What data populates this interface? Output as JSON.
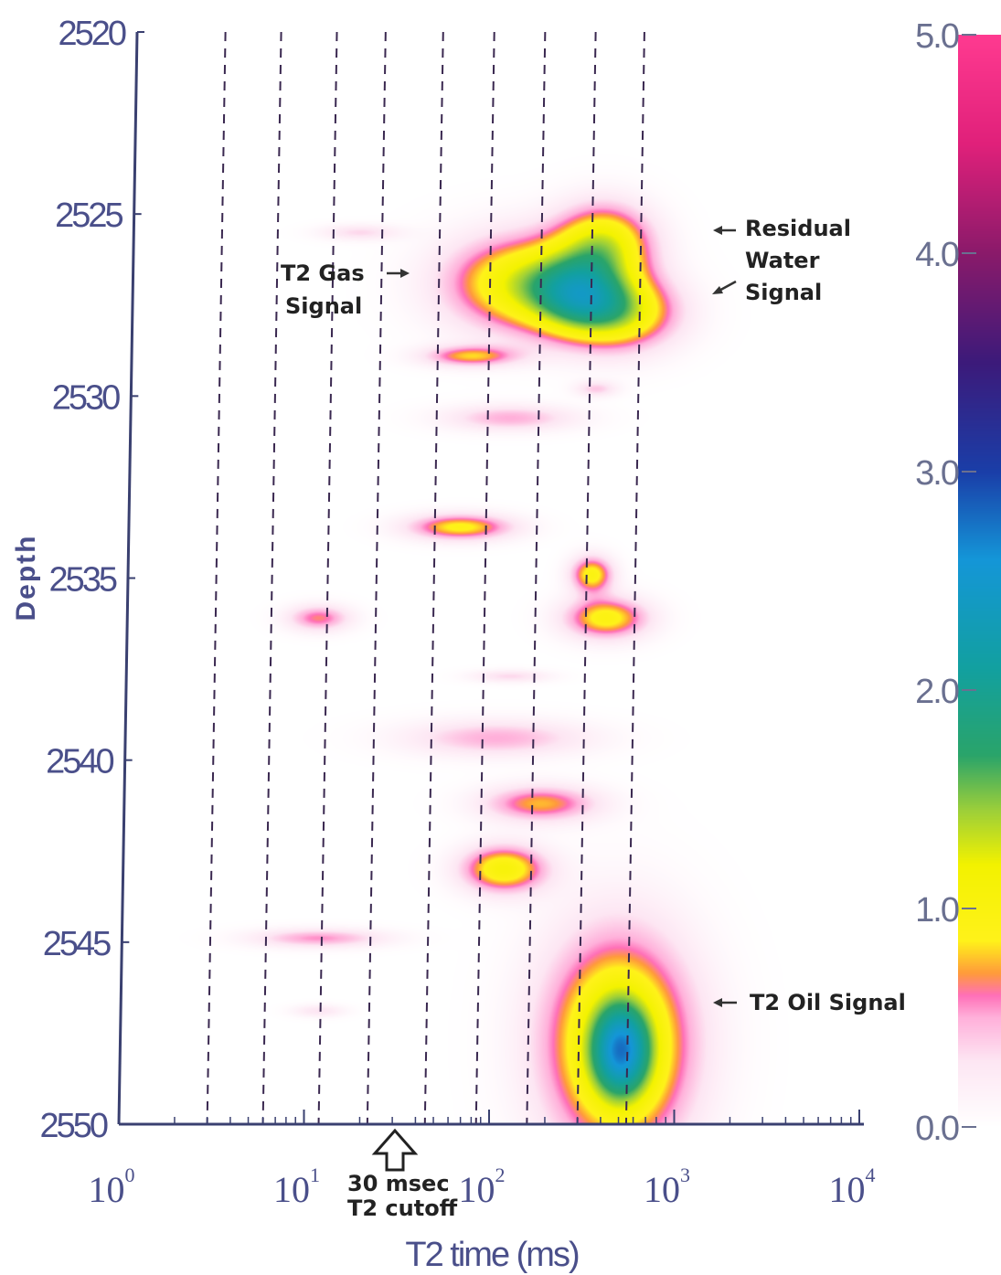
{
  "chart_data": {
    "type": "heatmap",
    "xlabel": "T2 time (ms)",
    "ylabel": "Depth",
    "x_scale": "log",
    "xlim": [
      1,
      10000
    ],
    "ylim": [
      2550,
      2520
    ],
    "x_ticks": [
      {
        "base": "10",
        "exp": "0"
      },
      {
        "base": "10",
        "exp": "1"
      },
      {
        "base": "10",
        "exp": "2"
      },
      {
        "base": "10",
        "exp": "3"
      },
      {
        "base": "10",
        "exp": "4"
      }
    ],
    "y_ticks": [
      "2520",
      "2525",
      "2530",
      "2535",
      "2540",
      "2545",
      "2550"
    ],
    "colorbar": {
      "range": [
        0,
        5
      ],
      "ticks": [
        "0.0",
        "1.0",
        "2.0",
        "3.0",
        "4.0",
        "5.0"
      ],
      "stops": [
        {
          "v": 0.0,
          "color": "#ffffff"
        },
        {
          "v": 0.3,
          "color": "#fde6f3"
        },
        {
          "v": 0.5,
          "color": "#ffb0da"
        },
        {
          "v": 0.6,
          "color": "#ff70b8"
        },
        {
          "v": 0.7,
          "color": "#ff9a3c"
        },
        {
          "v": 0.85,
          "color": "#fff21a"
        },
        {
          "v": 1.2,
          "color": "#f3f200"
        },
        {
          "v": 1.45,
          "color": "#9ccf3a"
        },
        {
          "v": 1.7,
          "color": "#2aa46a"
        },
        {
          "v": 2.1,
          "color": "#12a0a0"
        },
        {
          "v": 2.6,
          "color": "#1496d8"
        },
        {
          "v": 3.0,
          "color": "#1a3ea8"
        },
        {
          "v": 3.5,
          "color": "#3c1a7a"
        },
        {
          "v": 4.0,
          "color": "#8a1a6a"
        },
        {
          "v": 4.5,
          "color": "#e0207a"
        },
        {
          "v": 5.0,
          "color": "#ff3a90"
        }
      ]
    },
    "dashed_lines_x_ms": [
      3,
      6,
      12,
      22,
      45,
      85,
      160,
      300,
      550
    ],
    "blobs": [
      {
        "x": 160,
        "y": 2526.9,
        "sx": 0.3,
        "sy": 0.9,
        "amp": 1.2
      },
      {
        "x": 420,
        "y": 2525.8,
        "sx": 0.18,
        "sy": 0.75,
        "amp": 1.1
      },
      {
        "x": 500,
        "y": 2527.7,
        "sx": 0.22,
        "sy": 0.7,
        "amp": 1.15
      },
      {
        "x": 300,
        "y": 2527.2,
        "sx": 0.18,
        "sy": 0.7,
        "amp": 1.0
      },
      {
        "x": 80,
        "y": 2528.9,
        "sx": 0.18,
        "sy": 0.2,
        "amp": 0.75
      },
      {
        "x": 20,
        "y": 2525.5,
        "sx": 0.15,
        "sy": 0.15,
        "amp": 0.35
      },
      {
        "x": 130,
        "y": 2530.6,
        "sx": 0.25,
        "sy": 0.25,
        "amp": 0.5
      },
      {
        "x": 380,
        "y": 2529.8,
        "sx": 0.08,
        "sy": 0.15,
        "amp": 0.4
      },
      {
        "x": 70,
        "y": 2533.6,
        "sx": 0.2,
        "sy": 0.25,
        "amp": 0.9
      },
      {
        "x": 360,
        "y": 2534.9,
        "sx": 0.08,
        "sy": 0.35,
        "amp": 0.95
      },
      {
        "x": 430,
        "y": 2536.1,
        "sx": 0.16,
        "sy": 0.4,
        "amp": 0.95
      },
      {
        "x": 12,
        "y": 2536.1,
        "sx": 0.12,
        "sy": 0.25,
        "amp": 0.65
      },
      {
        "x": 130,
        "y": 2537.7,
        "sx": 0.15,
        "sy": 0.12,
        "amp": 0.35
      },
      {
        "x": 110,
        "y": 2539.4,
        "sx": 0.35,
        "sy": 0.35,
        "amp": 0.5
      },
      {
        "x": 190,
        "y": 2541.2,
        "sx": 0.22,
        "sy": 0.35,
        "amp": 0.75
      },
      {
        "x": 120,
        "y": 2543.0,
        "sx": 0.16,
        "sy": 0.45,
        "amp": 1.05
      },
      {
        "x": 12,
        "y": 2544.9,
        "sx": 0.25,
        "sy": 0.18,
        "amp": 0.55
      },
      {
        "x": 12,
        "y": 2546.9,
        "sx": 0.1,
        "sy": 0.12,
        "amp": 0.3
      },
      {
        "x": 500,
        "y": 2547.8,
        "sx": 0.28,
        "sy": 2.1,
        "amp": 1.3
      },
      {
        "x": 520,
        "y": 2548.0,
        "sx": 0.11,
        "sy": 0.9,
        "amp": 1.5
      }
    ]
  },
  "annotations": {
    "residual_water": [
      "Residual",
      "Water",
      "Signal"
    ],
    "gas": [
      "T2 Gas",
      "Signal"
    ],
    "oil": "T2 Oil Signal",
    "cutoff": [
      "30 msec",
      "T2 cutoff"
    ]
  }
}
